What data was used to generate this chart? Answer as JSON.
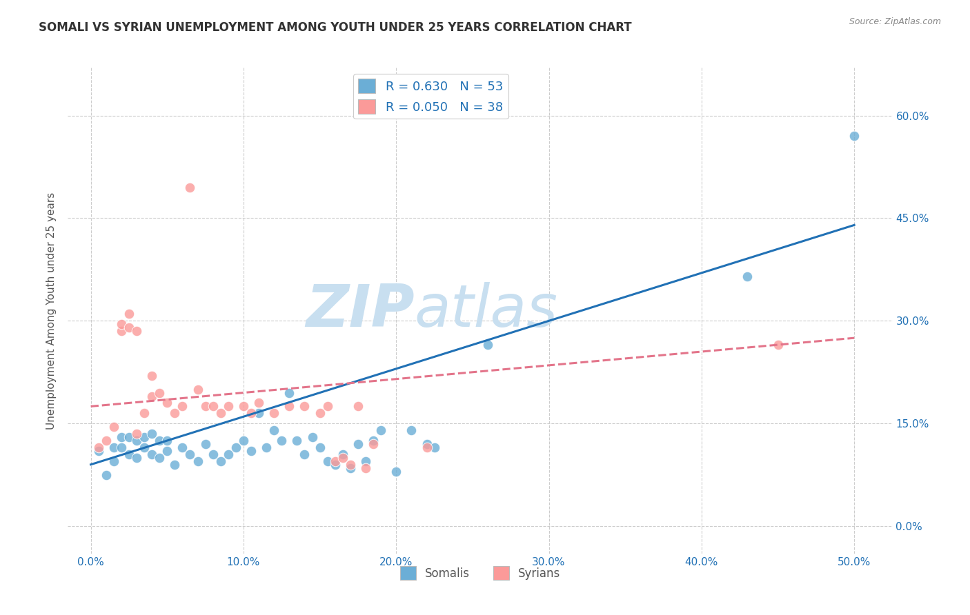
{
  "title": "SOMALI VS SYRIAN UNEMPLOYMENT AMONG YOUTH UNDER 25 YEARS CORRELATION CHART",
  "source": "Source: ZipAtlas.com",
  "ylabel": "Unemployment Among Youth under 25 years",
  "xlabel_ticks": [
    "0.0%",
    "10.0%",
    "20.0%",
    "30.0%",
    "40.0%",
    "50.0%"
  ],
  "xlabel_vals": [
    0.0,
    0.1,
    0.2,
    0.3,
    0.4,
    0.5
  ],
  "ylabel_ticks": [
    "0.0%",
    "15.0%",
    "30.0%",
    "45.0%",
    "60.0%"
  ],
  "ylabel_vals": [
    0.0,
    0.15,
    0.3,
    0.45,
    0.6
  ],
  "xlim": [
    -0.015,
    0.525
  ],
  "ylim": [
    -0.04,
    0.67
  ],
  "somali_R": 0.63,
  "somali_N": 53,
  "syrian_R": 0.05,
  "syrian_N": 38,
  "somali_color": "#6baed6",
  "syrian_color": "#fb9a99",
  "somali_line_color": "#2171b5",
  "syrian_line_color": "#e3748a",
  "legend_text_color": "#2171b5",
  "watermark_zip": "ZIP",
  "watermark_atlas": "atlas",
  "watermark_color_zip": "#c8dff0",
  "watermark_color_atlas": "#c8dff0",
  "background_color": "#ffffff",
  "grid_color": "#cccccc",
  "somali_x": [
    0.005,
    0.01,
    0.015,
    0.015,
    0.02,
    0.02,
    0.025,
    0.025,
    0.03,
    0.03,
    0.035,
    0.035,
    0.04,
    0.04,
    0.045,
    0.045,
    0.05,
    0.05,
    0.055,
    0.06,
    0.065,
    0.07,
    0.075,
    0.08,
    0.085,
    0.09,
    0.095,
    0.1,
    0.105,
    0.11,
    0.115,
    0.12,
    0.125,
    0.13,
    0.135,
    0.14,
    0.145,
    0.15,
    0.155,
    0.16,
    0.165,
    0.17,
    0.175,
    0.18,
    0.185,
    0.19,
    0.2,
    0.21,
    0.22,
    0.225,
    0.26,
    0.43,
    0.5
  ],
  "somali_y": [
    0.11,
    0.075,
    0.095,
    0.115,
    0.115,
    0.13,
    0.105,
    0.13,
    0.1,
    0.125,
    0.115,
    0.13,
    0.105,
    0.135,
    0.1,
    0.125,
    0.11,
    0.125,
    0.09,
    0.115,
    0.105,
    0.095,
    0.12,
    0.105,
    0.095,
    0.105,
    0.115,
    0.125,
    0.11,
    0.165,
    0.115,
    0.14,
    0.125,
    0.195,
    0.125,
    0.105,
    0.13,
    0.115,
    0.095,
    0.09,
    0.105,
    0.085,
    0.12,
    0.095,
    0.125,
    0.14,
    0.08,
    0.14,
    0.12,
    0.115,
    0.265,
    0.365,
    0.57
  ],
  "syrian_x": [
    0.005,
    0.01,
    0.015,
    0.02,
    0.02,
    0.025,
    0.025,
    0.03,
    0.03,
    0.035,
    0.04,
    0.04,
    0.045,
    0.05,
    0.055,
    0.06,
    0.065,
    0.07,
    0.075,
    0.08,
    0.085,
    0.09,
    0.1,
    0.105,
    0.11,
    0.12,
    0.13,
    0.14,
    0.15,
    0.155,
    0.16,
    0.165,
    0.17,
    0.175,
    0.18,
    0.185,
    0.22,
    0.45
  ],
  "syrian_y": [
    0.115,
    0.125,
    0.145,
    0.285,
    0.295,
    0.29,
    0.31,
    0.285,
    0.135,
    0.165,
    0.19,
    0.22,
    0.195,
    0.18,
    0.165,
    0.175,
    0.495,
    0.2,
    0.175,
    0.175,
    0.165,
    0.175,
    0.175,
    0.165,
    0.18,
    0.165,
    0.175,
    0.175,
    0.165,
    0.175,
    0.095,
    0.1,
    0.09,
    0.175,
    0.085,
    0.12,
    0.115,
    0.265
  ],
  "somali_line_x": [
    0.0,
    0.5
  ],
  "somali_line_y": [
    0.09,
    0.44
  ],
  "syrian_line_x": [
    0.0,
    0.5
  ],
  "syrian_line_y": [
    0.175,
    0.275
  ]
}
